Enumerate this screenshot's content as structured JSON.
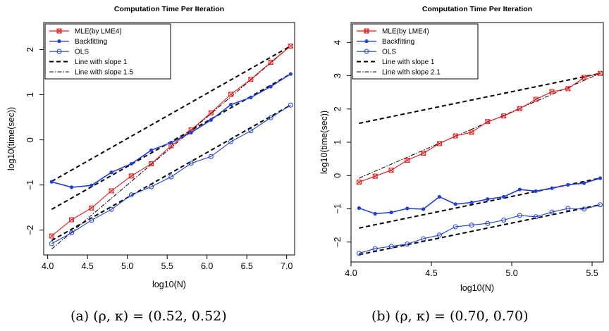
{
  "captions": {
    "a": "(a) (ρ, κ) = (0.52, 0.52)",
    "b": "(b) (ρ, κ) = (0.70, 0.70)"
  },
  "colors": {
    "mle": "#e31a1c",
    "backfitting": "#1f3fd6",
    "ols": "#1f3fd6",
    "reference": "#000000"
  },
  "chart_data": [
    {
      "type": "line",
      "title": "Computation Time Per Iteration",
      "xlabel": "log10(N)",
      "ylabel": "log10(time(sec))",
      "xlim": [
        3.95,
        7.1
      ],
      "ylim": [
        -2.55,
        2.6
      ],
      "xticks": [
        "4.0",
        "4.5",
        "5.0",
        "5.5",
        "6.0",
        "6.5",
        "7.0"
      ],
      "yticks": [
        "-2",
        "-1",
        "0",
        "1",
        "2"
      ],
      "grid": false,
      "legend_position": "top-left",
      "x": [
        4.05,
        4.3,
        4.55,
        4.8,
        5.05,
        5.3,
        5.55,
        5.8,
        6.05,
        6.3,
        6.55,
        6.8,
        7.05
      ],
      "series": [
        {
          "name": "MLE(by LME4)",
          "values": [
            -2.13,
            -1.77,
            -1.51,
            -1.13,
            -0.8,
            -0.53,
            -0.13,
            0.22,
            0.6,
            1.01,
            1.34,
            1.72,
            2.08
          ]
        },
        {
          "name": "Backfitting",
          "values": [
            -0.93,
            -1.05,
            -1.01,
            -0.72,
            -0.53,
            -0.23,
            -0.06,
            0.16,
            0.44,
            0.78,
            0.94,
            1.18,
            1.46
          ]
        },
        {
          "name": "OLS",
          "values": [
            -2.3,
            -2.06,
            -1.78,
            -1.54,
            -1.22,
            -1.04,
            -0.82,
            -0.52,
            -0.37,
            -0.04,
            0.2,
            0.49,
            0.77
          ]
        }
      ],
      "reference_lines": [
        {
          "name": "Line with slope 1",
          "style": "dashed",
          "points": [
            [
              4.05,
              -0.92
            ],
            [
              7.05,
              2.08
            ]
          ]
        },
        {
          "style": "dashed",
          "points": [
            [
              4.05,
              -1.54
            ],
            [
              7.05,
              1.46
            ]
          ]
        },
        {
          "style": "dashed",
          "points": [
            [
              4.05,
              -2.23
            ],
            [
              7.05,
              0.77
            ]
          ]
        },
        {
          "name": "Line with slope 1.5",
          "style": "dotdash",
          "points": [
            [
              4.05,
              -2.42
            ],
            [
              7.05,
              2.08
            ]
          ]
        }
      ]
    },
    {
      "type": "line",
      "title": "Computation Time Per Iteration",
      "xlabel": "log10(N)",
      "ylabel": "log10(time(sec))",
      "xlim": [
        4.0,
        5.57
      ],
      "ylim": [
        -2.6,
        4.6
      ],
      "xticks": [
        "4.0",
        "4.5",
        "5.0",
        "5.5"
      ],
      "yticks": [
        "-2",
        "-1",
        "0",
        "1",
        "2",
        "3",
        "4"
      ],
      "grid": false,
      "legend_position": "top-left",
      "x": [
        4.05,
        4.15,
        4.25,
        4.35,
        4.45,
        4.55,
        4.65,
        4.75,
        4.85,
        4.95,
        5.05,
        5.15,
        5.25,
        5.35,
        5.45,
        5.55
      ],
      "series": [
        {
          "name": "MLE(by LME4)",
          "values": [
            -0.2,
            -0.02,
            0.16,
            0.46,
            0.67,
            0.96,
            1.19,
            1.3,
            1.62,
            1.79,
            2.01,
            2.29,
            2.52,
            2.61,
            2.95,
            3.07
          ]
        },
        {
          "name": "Backfitting",
          "values": [
            -0.98,
            -1.15,
            -1.11,
            -0.99,
            -1.01,
            -0.64,
            -0.86,
            -0.81,
            -0.71,
            -0.64,
            -0.42,
            -0.47,
            -0.38,
            -0.28,
            -0.23,
            -0.08
          ]
        },
        {
          "name": "OLS",
          "values": [
            -2.34,
            -2.2,
            -2.13,
            -2.06,
            -1.9,
            -1.79,
            -1.54,
            -1.49,
            -1.44,
            -1.34,
            -1.2,
            -1.24,
            -1.1,
            -0.99,
            -1.01,
            -0.88
          ]
        }
      ],
      "reference_lines": [
        {
          "name": "Line with slope 1",
          "style": "dashed",
          "points": [
            [
              4.05,
              1.57
            ],
            [
              5.55,
              3.07
            ]
          ]
        },
        {
          "style": "dashed",
          "points": [
            [
              4.05,
              -1.58
            ],
            [
              5.55,
              -0.08
            ]
          ]
        },
        {
          "style": "dashed",
          "points": [
            [
              4.05,
              -2.38
            ],
            [
              5.55,
              -0.88
            ]
          ]
        },
        {
          "name": "Line with slope 2.1",
          "style": "dotdash",
          "points": [
            [
              4.05,
              -0.08
            ],
            [
              5.55,
              3.07
            ]
          ]
        }
      ]
    }
  ]
}
